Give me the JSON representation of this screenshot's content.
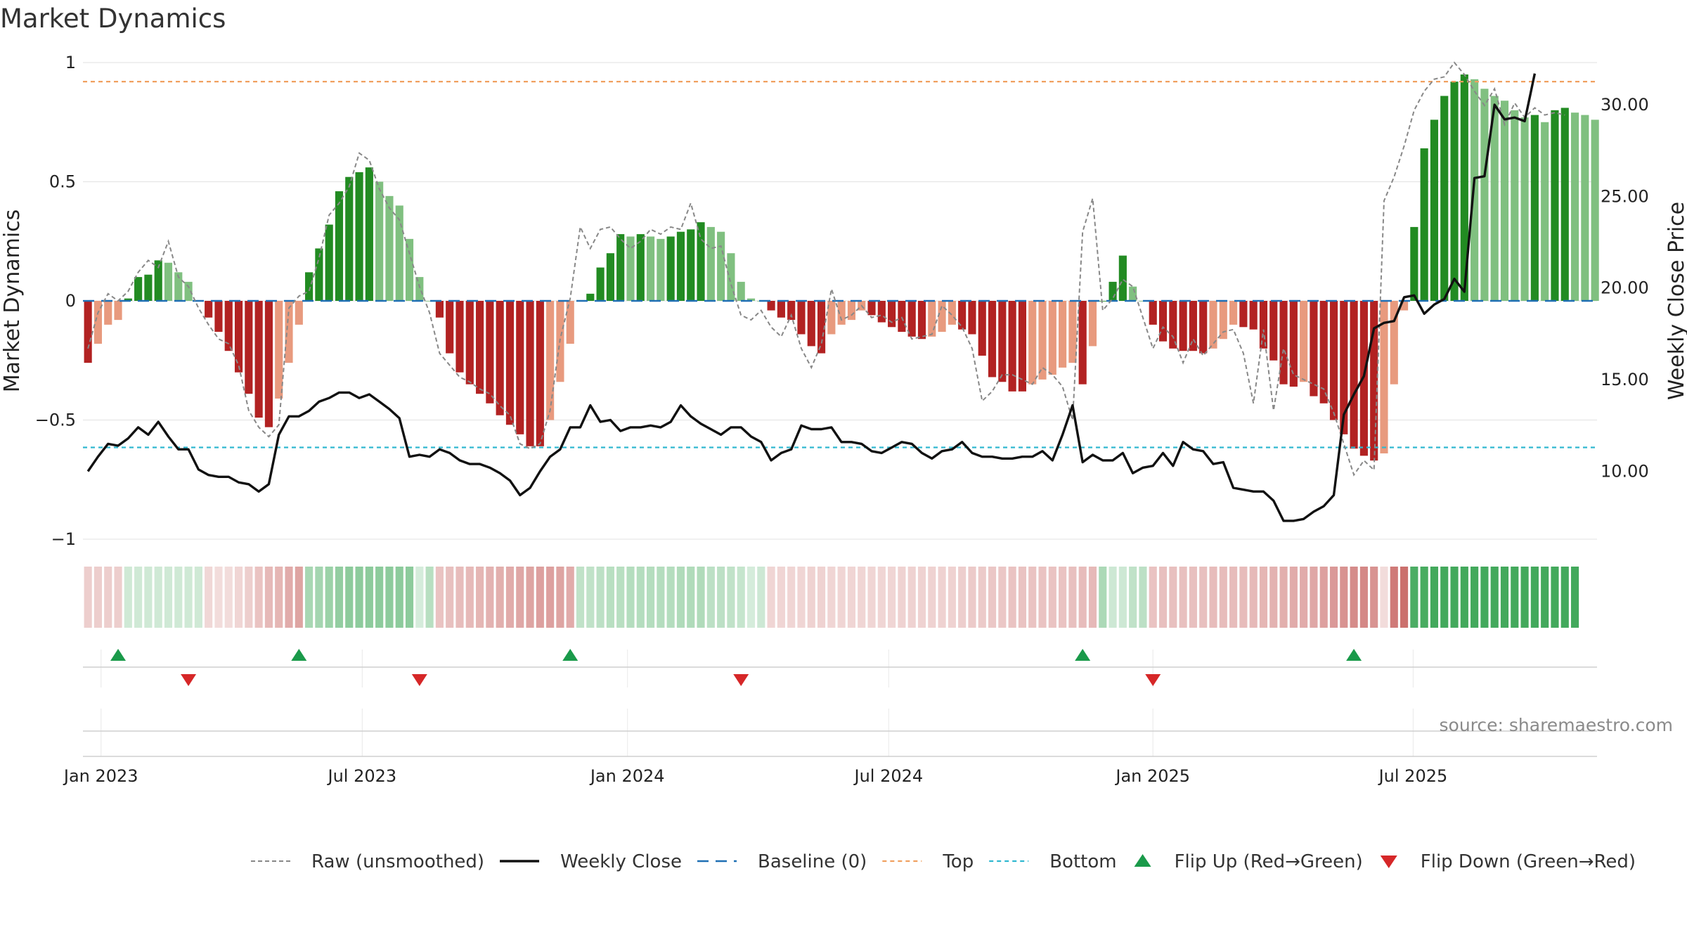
{
  "chart_data": {
    "type": "bar",
    "title": "Market Dynamics",
    "ylabel_left": "Market Dynamics",
    "ylabel_right": "Weekly Close Price",
    "ylim_left": [
      -1,
      1
    ],
    "ylim_right": [
      6.3,
      32.3
    ],
    "yticks_left": [
      {
        "value": 1,
        "label": "1"
      },
      {
        "value": 0.5,
        "label": "0.5"
      },
      {
        "value": 0,
        "label": "0"
      },
      {
        "value": -0.5,
        "label": "−0.5"
      },
      {
        "value": -1,
        "label": "−1"
      }
    ],
    "yticks_right": [
      {
        "value": 30,
        "label": "30.00"
      },
      {
        "value": 25,
        "label": "25.00"
      },
      {
        "value": 20,
        "label": "20.00"
      },
      {
        "value": 15,
        "label": "15.00"
      },
      {
        "value": 10,
        "label": "10.00"
      }
    ],
    "x_start": "2022-12-23",
    "x_step_days": 7,
    "xticks": [
      {
        "index": 1.3,
        "label": "Jan 2023"
      },
      {
        "index": 27.3,
        "label": "Jul 2023"
      },
      {
        "index": 53.7,
        "label": "Jan 2024"
      },
      {
        "index": 79.7,
        "label": "Jul 2024"
      },
      {
        "index": 106,
        "label": "Jan 2025"
      },
      {
        "index": 131.9,
        "label": "Jul 2025"
      }
    ],
    "top_threshold": 0.92,
    "bottom_threshold": -0.615,
    "baseline": 0,
    "smoothed": [
      -0.26,
      -0.18,
      -0.1,
      -0.08,
      0.01,
      0.1,
      0.11,
      0.17,
      0.16,
      0.12,
      0.08,
      0,
      -0.07,
      -0.13,
      -0.21,
      -0.3,
      -0.39,
      -0.49,
      -0.53,
      -0.41,
      -0.26,
      -0.1,
      0.12,
      0.22,
      0.32,
      0.46,
      0.52,
      0.54,
      0.56,
      0.5,
      0.44,
      0.4,
      0.26,
      0.1,
      0,
      -0.07,
      -0.22,
      -0.3,
      -0.35,
      -0.39,
      -0.43,
      -0.48,
      -0.52,
      -0.56,
      -0.61,
      -0.61,
      -0.5,
      -0.34,
      -0.18,
      0,
      0.03,
      0.14,
      0.2,
      0.28,
      0.27,
      0.28,
      0.27,
      0.26,
      0.27,
      0.29,
      0.3,
      0.33,
      0.31,
      0.29,
      0.2,
      0.08,
      0.01,
      0,
      -0.04,
      -0.07,
      -0.08,
      -0.14,
      -0.19,
      -0.22,
      -0.14,
      -0.1,
      -0.08,
      -0.04,
      -0.06,
      -0.09,
      -0.11,
      -0.13,
      -0.15,
      -0.16,
      -0.15,
      -0.13,
      -0.1,
      -0.12,
      -0.14,
      -0.23,
      -0.32,
      -0.34,
      -0.38,
      -0.38,
      -0.35,
      -0.33,
      -0.31,
      -0.28,
      -0.26,
      -0.35,
      -0.19,
      0,
      0.08,
      0.19,
      0.06,
      0,
      -0.1,
      -0.17,
      -0.2,
      -0.21,
      -0.21,
      -0.22,
      -0.2,
      -0.16,
      -0.1,
      -0.11,
      -0.12,
      -0.2,
      -0.25,
      -0.35,
      -0.36,
      -0.34,
      -0.4,
      -0.43,
      -0.5,
      -0.56,
      -0.62,
      -0.65,
      -0.67,
      -0.64,
      -0.35,
      -0.04,
      0.31,
      0.64,
      0.76,
      0.86,
      0.92,
      0.95,
      0.93,
      0.89,
      0.86,
      0.84,
      0.8,
      0.77,
      0.78,
      0.75,
      0.8,
      0.81,
      0.79,
      0.78,
      0.76
    ],
    "raw": [
      -0.2,
      -0.05,
      0.03,
      0,
      0.04,
      0.12,
      0.17,
      0.14,
      0.25,
      0.1,
      0.06,
      -0.03,
      -0.1,
      -0.16,
      -0.18,
      -0.27,
      -0.46,
      -0.53,
      -0.57,
      -0.52,
      -0.03,
      0.02,
      0.04,
      0.18,
      0.36,
      0.41,
      0.48,
      0.62,
      0.59,
      0.47,
      0.39,
      0.34,
      0.2,
      0.06,
      -0.05,
      -0.22,
      -0.27,
      -0.32,
      -0.34,
      -0.37,
      -0.39,
      -0.44,
      -0.48,
      -0.6,
      -0.62,
      -0.6,
      -0.46,
      -0.16,
      0.01,
      0.31,
      0.22,
      0.3,
      0.31,
      0.26,
      0.22,
      0.25,
      0.3,
      0.28,
      0.31,
      0.3,
      0.41,
      0.26,
      0.22,
      0.23,
      0.07,
      -0.06,
      -0.08,
      -0.04,
      -0.11,
      -0.15,
      -0.06,
      -0.2,
      -0.28,
      -0.18,
      0.05,
      -0.08,
      -0.06,
      -0.02,
      -0.07,
      -0.06,
      -0.09,
      -0.07,
      -0.16,
      -0.15,
      -0.14,
      -0.02,
      -0.06,
      -0.11,
      -0.2,
      -0.42,
      -0.38,
      -0.31,
      -0.31,
      -0.33,
      -0.35,
      -0.28,
      -0.31,
      -0.36,
      -0.5,
      0.29,
      0.43,
      -0.04,
      0.01,
      0.09,
      0.06,
      -0.07,
      -0.2,
      -0.11,
      -0.15,
      -0.26,
      -0.16,
      -0.23,
      -0.18,
      -0.13,
      -0.12,
      -0.22,
      -0.43,
      -0.12,
      -0.46,
      -0.2,
      -0.31,
      -0.33,
      -0.35,
      -0.37,
      -0.47,
      -0.6,
      -0.73,
      -0.67,
      -0.71,
      0.42,
      0.52,
      0.65,
      0.8,
      0.88,
      0.93,
      0.94,
      1,
      0.95,
      0.88,
      0.82,
      0.89,
      0.74,
      0.83,
      0.77,
      0.81,
      0.78,
      0.79,
      0.78
    ],
    "weekly_close": [
      10.0,
      10.8,
      11.5,
      11.4,
      11.8,
      12.4,
      12.0,
      12.7,
      11.9,
      11.2,
      11.2,
      10.1,
      9.8,
      9.7,
      9.7,
      9.4,
      9.3,
      8.9,
      9.3,
      12.0,
      13.0,
      13.0,
      13.3,
      13.8,
      14.0,
      14.3,
      14.3,
      14.0,
      14.2,
      13.8,
      13.4,
      12.9,
      10.8,
      10.9,
      10.8,
      11.2,
      11.0,
      10.6,
      10.4,
      10.4,
      10.2,
      9.9,
      9.5,
      8.7,
      9.1,
      10.0,
      10.8,
      11.2,
      12.4,
      12.4,
      13.6,
      12.7,
      12.8,
      12.2,
      12.4,
      12.4,
      12.5,
      12.4,
      12.7,
      13.6,
      13.0,
      12.6,
      12.3,
      12.0,
      12.4,
      12.4,
      11.9,
      11.6,
      10.6,
      11.0,
      11.2,
      12.5,
      12.3,
      12.3,
      12.4,
      11.6,
      11.6,
      11.5,
      11.1,
      11.0,
      11.3,
      11.6,
      11.5,
      11.0,
      10.7,
      11.1,
      11.2,
      11.6,
      11.0,
      10.8,
      10.8,
      10.7,
      10.7,
      10.8,
      10.8,
      11.1,
      10.6,
      12.0,
      13.6,
      10.5,
      10.9,
      10.6,
      10.6,
      11.0,
      9.9,
      10.2,
      10.3,
      11.0,
      10.3,
      11.6,
      11.2,
      11.1,
      10.4,
      10.5,
      9.1,
      9.0,
      8.9,
      8.9,
      8.4,
      7.3,
      7.3,
      7.4,
      7.8,
      8.1,
      8.7,
      13.1,
      14.2,
      15.2,
      17.8,
      18.1,
      18.2,
      19.5,
      19.6,
      18.6,
      19.1,
      19.4,
      20.5,
      19.8,
      26.0,
      26.1,
      30.0,
      29.2,
      29.3,
      29.1,
      31.7
    ],
    "regime_strip_alpha": [
      0.28,
      0.28,
      0.28,
      0.28,
      0.23,
      0.23,
      0.23,
      0.23,
      0.23,
      0.23,
      0.23,
      0.23,
      0.23,
      0.2,
      0.2,
      0.24,
      0.28,
      0.34,
      0.4,
      0.42,
      0.48,
      0.52,
      0.42,
      0.44,
      0.48,
      0.52,
      0.55,
      0.55,
      0.55,
      0.55,
      0.55,
      0.55,
      0.55,
      0.2,
      0.34,
      0.34,
      0.36,
      0.38,
      0.4,
      0.42,
      0.44,
      0.46,
      0.48,
      0.5,
      0.52,
      0.54,
      0.54,
      0.52,
      0.48,
      0.3,
      0.3,
      0.32,
      0.34,
      0.34,
      0.36,
      0.36,
      0.36,
      0.36,
      0.36,
      0.38,
      0.38,
      0.38,
      0.32,
      0.32,
      0.3,
      0.28,
      0.2,
      0.24,
      0.24,
      0.24,
      0.24,
      0.24,
      0.26,
      0.26,
      0.24,
      0.24,
      0.24,
      0.24,
      0.24,
      0.24,
      0.24,
      0.26,
      0.26,
      0.26,
      0.26,
      0.26,
      0.26,
      0.28,
      0.3,
      0.3,
      0.32,
      0.32,
      0.34,
      0.34,
      0.34,
      0.34,
      0.34,
      0.34,
      0.36,
      0.38,
      0.4,
      0.4,
      0.24,
      0.24,
      0.3,
      0.32,
      0.34,
      0.36,
      0.36,
      0.36,
      0.36,
      0.36,
      0.38,
      0.38,
      0.38,
      0.38,
      0.4,
      0.42,
      0.44,
      0.46,
      0.48,
      0.48,
      0.5,
      0.54,
      0.58,
      0.62,
      0.66,
      0.68,
      0.62,
      0.2,
      0.76,
      0.82,
      0.86,
      0.88,
      0.9,
      0.9,
      0.9,
      0.9,
      0.9,
      0.9,
      0.9,
      0.9,
      0.9,
      0.9,
      0.9,
      0.9,
      0.9,
      0.9,
      0.9
    ],
    "flip_up_indices": [
      3,
      21,
      48,
      99,
      126
    ],
    "flip_down_indices": [
      10,
      33,
      65,
      106
    ],
    "colors": {
      "strong_green": "#228b22",
      "light_green": "#80c080",
      "strong_red": "#b22222",
      "light_red": "#e89a7e",
      "strip_green": "#2fa04a",
      "strip_red": "#c0504d",
      "raw_line": "#888888",
      "close_line": "#111111",
      "baseline": "#1f6fb4",
      "top": "#f0a060",
      "bottom": "#30b8d0",
      "flip_up": "#1a9a4a",
      "flip_down": "#d62728"
    },
    "legend": [
      {
        "key": "raw",
        "label": "Raw (unsmoothed)"
      },
      {
        "key": "close",
        "label": "Weekly Close"
      },
      {
        "key": "baseline",
        "label": "Baseline (0)"
      },
      {
        "key": "top",
        "label": "Top"
      },
      {
        "key": "bottom",
        "label": "Bottom"
      },
      {
        "key": "flip_up",
        "label": "Flip Up (Red→Green)"
      },
      {
        "key": "flip_down",
        "label": "Flip Down (Green→Red)"
      }
    ],
    "source": "source: sharemaestro.com"
  }
}
